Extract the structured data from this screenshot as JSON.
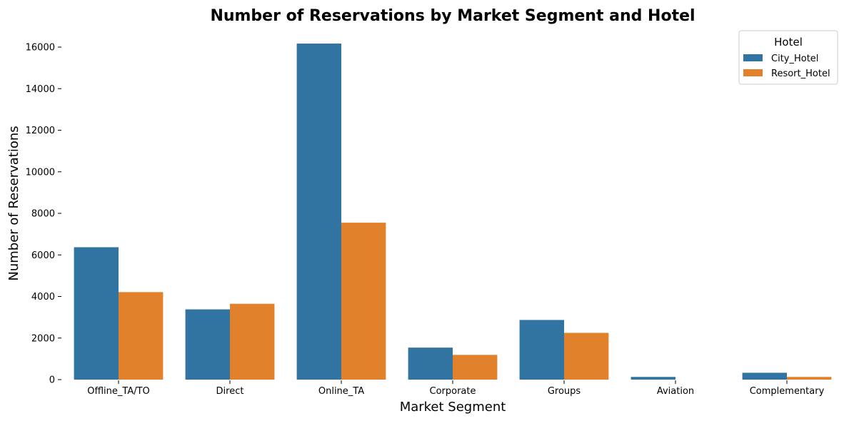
{
  "chart_data": {
    "type": "bar",
    "title": "Number of Reservations by Market Segment and Hotel",
    "xlabel": "Market Segment",
    "ylabel": "Number of Reservations",
    "categories": [
      "Offline_TA/TO",
      "Direct",
      "Online_TA",
      "Corporate",
      "Groups",
      "Aviation",
      "Complementary"
    ],
    "series": [
      {
        "name": "City_Hotel",
        "color": "#3274a1",
        "values": [
          6370,
          3380,
          16170,
          1540,
          2870,
          130,
          330
        ]
      },
      {
        "name": "Resort_Hotel",
        "color": "#e1812c",
        "values": [
          4210,
          3650,
          7550,
          1190,
          2250,
          0,
          130
        ]
      }
    ],
    "ylim": [
      0,
      16500
    ],
    "yticks": [
      0,
      2000,
      4000,
      6000,
      8000,
      10000,
      12000,
      14000,
      16000
    ],
    "grid": false,
    "legend": {
      "title": "Hotel",
      "position": "top-right"
    }
  }
}
